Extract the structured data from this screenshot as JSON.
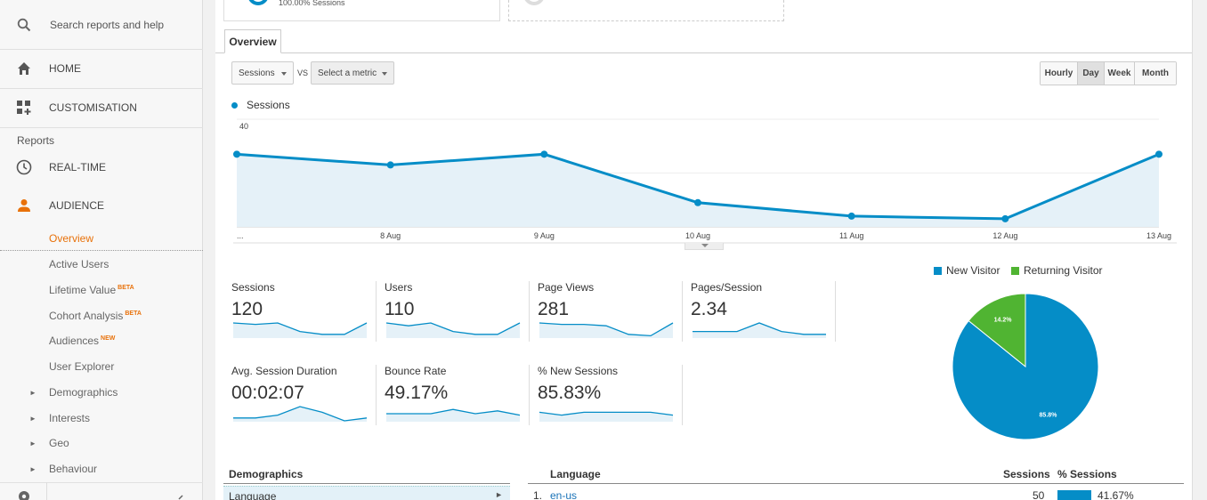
{
  "sidebar": {
    "search_placeholder": "Search reports and help",
    "home": "HOME",
    "customisation": "CUSTOMISATION",
    "reports_heading": "Reports",
    "realtime": "REAL-TIME",
    "audience": "AUDIENCE",
    "overview": "Overview",
    "active_users": "Active Users",
    "lifetime_value": "Lifetime Value",
    "lifetime_value_badge": "BETA",
    "cohort_analysis": "Cohort Analysis",
    "cohort_analysis_badge": "BETA",
    "audiences": "Audiences",
    "audiences_badge": "NEW",
    "user_explorer": "User Explorer",
    "demographics": "Demographics",
    "interests": "Interests",
    "geo": "Geo",
    "behaviour": "Behaviour"
  },
  "top_card": {
    "sessions_text": "100.00% Sessions"
  },
  "tab": {
    "overview": "Overview"
  },
  "controls": {
    "metric1": "Sessions",
    "vs": "VS",
    "metric2": "Select a metric",
    "granularity": [
      {
        "label": "Hourly",
        "active": false
      },
      {
        "label": "Day",
        "active": true
      },
      {
        "label": "Week",
        "active": false
      },
      {
        "label": "Month",
        "active": false
      }
    ]
  },
  "chart_data": {
    "type": "area",
    "series": [
      {
        "name": "Sessions",
        "color": "#058dc7",
        "values": [
          27,
          23,
          27,
          9,
          4,
          3,
          27
        ]
      }
    ],
    "x": [
      "...",
      "8 Aug",
      "9 Aug",
      "10 Aug",
      "11 Aug",
      "12 Aug",
      "13 Aug"
    ],
    "yticks": [
      40,
      20
    ],
    "ylim": [
      0,
      40
    ],
    "grid": true
  },
  "metrics": [
    {
      "label": "Sessions",
      "value": "120",
      "spark": [
        5,
        4.5,
        5,
        2,
        1,
        1,
        5
      ]
    },
    {
      "label": "Users",
      "value": "110",
      "spark": [
        5,
        4,
        5,
        2,
        1,
        1,
        5
      ]
    },
    {
      "label": "Page Views",
      "value": "281",
      "spark": [
        5,
        4.5,
        4.5,
        4,
        1,
        0.5,
        5
      ]
    },
    {
      "label": "Pages/Session",
      "value": "2.34",
      "spark": [
        2,
        2,
        2,
        5,
        2,
        1,
        1
      ]
    },
    {
      "label": "Avg. Session Duration",
      "value": "00:02:07",
      "spark": [
        1,
        1,
        2,
        5,
        3,
        0,
        1
      ]
    },
    {
      "label": "Bounce Rate",
      "value": "49.17%",
      "spark": [
        2.5,
        2.5,
        2.5,
        4,
        2.5,
        3.5,
        2
      ]
    },
    {
      "label": "% New Sessions",
      "value": "85.83%",
      "spark": [
        3,
        2,
        3,
        3,
        3,
        3,
        2
      ]
    }
  ],
  "pie": {
    "legend": [
      {
        "label": "New Visitor",
        "color": "#058dc7"
      },
      {
        "label": "Returning Visitor",
        "color": "#50b432"
      }
    ],
    "values": [
      85.8,
      14.2
    ],
    "labels": [
      "85.8%",
      "14.2%"
    ]
  },
  "demographics": {
    "heading": "Demographics",
    "row": "Language"
  },
  "language_table": {
    "heading": "Language",
    "col_sessions": "Sessions",
    "col_pct": "% Sessions",
    "rows": [
      {
        "index": "1.",
        "name": "en-us",
        "sessions": "50",
        "pct": "41.67%",
        "pct_value": 41.67
      }
    ]
  }
}
